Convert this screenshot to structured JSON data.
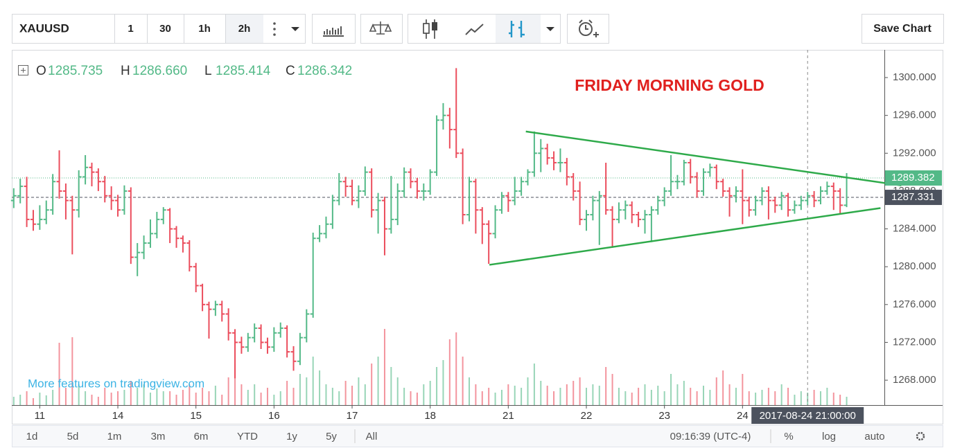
{
  "toolbar": {
    "symbol": "XAUUSD",
    "intervals": [
      "1",
      "30",
      "1h",
      "2h"
    ],
    "save": "Save Chart"
  },
  "bottom_bar": {
    "ranges": [
      "1d",
      "5d",
      "1m",
      "3m",
      "6m",
      "YTD",
      "1y",
      "5y",
      "All"
    ],
    "time": "09:16:39 (UTC-4)",
    "options": [
      "%",
      "log",
      "auto"
    ]
  },
  "chart_data": {
    "type": "ohlc",
    "title": "FRIDAY MORNING GOLD",
    "watermark": "More features on tradingview.com",
    "up_color": "#53b987",
    "down_color": "#eb4d5c",
    "readout": {
      "names": [
        "O",
        "H",
        "L",
        "C"
      ],
      "values": [
        1285.735,
        1286.66,
        1285.414,
        1286.342
      ],
      "value_labels": [
        "1285.735",
        "1286.660",
        "1285.414",
        "1286.342"
      ]
    },
    "xlim": [
      -0.3,
      133.8
    ],
    "xticks": [
      {
        "value": 4,
        "label": "11"
      },
      {
        "value": 16,
        "label": "14"
      },
      {
        "value": 28,
        "label": "15"
      },
      {
        "value": 40,
        "label": "16"
      },
      {
        "value": 52,
        "label": "17"
      },
      {
        "value": 64,
        "label": "18"
      },
      {
        "value": 76,
        "label": "21"
      },
      {
        "value": 88,
        "label": "22"
      },
      {
        "value": 100,
        "label": "23"
      },
      {
        "value": 112,
        "label": "24"
      }
    ],
    "ylim": [
      1265.37,
      1302.93
    ],
    "yticks": [
      {
        "value": 1268,
        "label": "1268.000"
      },
      {
        "value": 1272,
        "label": "1272.000"
      },
      {
        "value": 1276,
        "label": "1276.000"
      },
      {
        "value": 1280,
        "label": "1280.000"
      },
      {
        "value": 1284,
        "label": "1284.000"
      },
      {
        "value": 1288,
        "label": "1288.000"
      },
      {
        "value": 1292,
        "label": "1292.000"
      },
      {
        "value": 1296,
        "label": "1296.000"
      },
      {
        "value": 1300,
        "label": "1300.000"
      }
    ],
    "grid": false,
    "open": [
      1287.0,
      1287.5,
      1288.5,
      1285.0,
      1284.5,
      1285.0,
      1286.0,
      1289.0,
      1288.0,
      1287.0,
      1286.0,
      1289.5,
      1290.5,
      1290.0,
      1289.0,
      1287.5,
      1287.0,
      1286.0,
      1288.0,
      1281.0,
      1281.5,
      1282.5,
      1283.5,
      1285.0,
      1286.0,
      1284.0,
      1283.0,
      1282.5,
      1280.0,
      1278.0,
      1276.0,
      1275.5,
      1276.0,
      1275.0,
      1273.0,
      1272.0,
      1271.5,
      1272.5,
      1273.5,
      1272.0,
      1271.5,
      1273.0,
      1273.5,
      1271.0,
      1270.0,
      1272.5,
      1275.0,
      1283.0,
      1283.5,
      1284.5,
      1287.0,
      1289.0,
      1288.5,
      1287.0,
      1288.0,
      1290.0,
      1286.0,
      1287.0,
      1284.0,
      1285.0,
      1288.0,
      1290.0,
      1289.0,
      1288.0,
      1288.0,
      1290.0,
      1295.5,
      1296.0,
      1294.5,
      1292.0,
      1285.5,
      1289.0,
      1286.0,
      1284.5,
      1283.5,
      1286.0,
      1287.5,
      1287.0,
      1288.0,
      1289.0,
      1290.0,
      1292.0,
      1292.5,
      1291.5,
      1291.0,
      1291.0,
      1289.5,
      1288.0,
      1285.0,
      1285.5,
      1287.0,
      1287.5,
      1286.0,
      1285.0,
      1286.0,
      1286.5,
      1285.5,
      1285.0,
      1285.5,
      1286.0,
      1287.0,
      1288.0,
      1289.0,
      1289.0,
      1291.0,
      1289.5,
      1288.0,
      1290.0,
      1290.5,
      1289.0,
      1288.0,
      1287.5,
      1288.0,
      1287.0,
      1286.0,
      1287.0,
      1288.0,
      1287.0,
      1286.5,
      1287.5,
      1286.0,
      1286.5,
      1287.0,
      1287.5,
      1287.0,
      1288.0,
      1288.5,
      1288.0,
      1286.5
    ],
    "high": [
      1288.3,
      1289.3,
      1289.5,
      1286.0,
      1286.5,
      1287.0,
      1289.8,
      1292.3,
      1288.8,
      1287.5,
      1290.2,
      1291.8,
      1291.0,
      1290.4,
      1289.6,
      1288.5,
      1287.6,
      1288.6,
      1288.4,
      1282.5,
      1283.3,
      1285.0,
      1285.8,
      1286.3,
      1286.2,
      1284.3,
      1283.3,
      1282.8,
      1280.4,
      1278.2,
      1276.3,
      1276.4,
      1276.4,
      1275.6,
      1273.4,
      1272.6,
      1273.0,
      1274.0,
      1273.9,
      1272.5,
      1273.6,
      1274.1,
      1273.8,
      1271.6,
      1273.0,
      1275.5,
      1283.6,
      1284.4,
      1285.3,
      1287.6,
      1289.9,
      1289.5,
      1289.2,
      1288.6,
      1290.6,
      1290.4,
      1287.8,
      1287.4,
      1289.6,
      1288.8,
      1290.5,
      1290.4,
      1289.4,
      1288.8,
      1290.3,
      1296.0,
      1297.3,
      1296.8,
      1301.0,
      1292.5,
      1289.5,
      1289.3,
      1286.3,
      1284.9,
      1286.5,
      1287.9,
      1287.9,
      1289.5,
      1289.5,
      1290.3,
      1294.3,
      1293.5,
      1293.0,
      1292.2,
      1292.5,
      1291.5,
      1289.9,
      1289.0,
      1286.0,
      1287.5,
      1288.0,
      1291.0,
      1286.4,
      1286.8,
      1287.0,
      1286.9,
      1285.8,
      1286.0,
      1286.4,
      1287.5,
      1288.4,
      1291.8,
      1289.7,
      1291.3,
      1291.4,
      1290.0,
      1290.4,
      1290.9,
      1290.8,
      1289.3,
      1288.4,
      1288.5,
      1290.3,
      1287.4,
      1287.5,
      1288.4,
      1288.5,
      1287.4,
      1287.9,
      1287.8,
      1287.0,
      1287.5,
      1287.9,
      1288.0,
      1288.5,
      1289.0,
      1288.9,
      1288.3,
      1289.9
    ],
    "low": [
      1286.2,
      1286.7,
      1284.2,
      1283.8,
      1283.9,
      1284.5,
      1285.5,
      1287.2,
      1285.0,
      1281.3,
      1285.2,
      1288.7,
      1288.5,
      1288.0,
      1286.8,
      1286.0,
      1285.3,
      1285.5,
      1280.3,
      1279.0,
      1280.8,
      1282.0,
      1283.0,
      1284.5,
      1282.5,
      1282.0,
      1281.5,
      1279.5,
      1277.3,
      1275.3,
      1272.4,
      1274.8,
      1274.2,
      1272.2,
      1268.2,
      1270.8,
      1271.0,
      1272.0,
      1271.3,
      1270.8,
      1271.0,
      1272.5,
      1270.4,
      1269.0,
      1269.6,
      1272.0,
      1274.6,
      1282.6,
      1283.0,
      1284.0,
      1286.5,
      1287.4,
      1286.5,
      1286.2,
      1287.5,
      1285.2,
      1283.5,
      1281.2,
      1283.5,
      1284.4,
      1287.3,
      1288.3,
      1287.2,
      1287.0,
      1287.6,
      1289.6,
      1294.5,
      1292.5,
      1291.5,
      1284.5,
      1284.8,
      1283.5,
      1282.4,
      1280.3,
      1283.0,
      1285.6,
      1285.8,
      1286.5,
      1287.5,
      1288.6,
      1289.5,
      1290.0,
      1290.8,
      1290.2,
      1290.0,
      1288.6,
      1287.0,
      1284.4,
      1283.8,
      1284.9,
      1282.3,
      1285.5,
      1282.0,
      1284.6,
      1285.0,
      1284.6,
      1284.2,
      1283.5,
      1282.6,
      1285.5,
      1286.4,
      1287.5,
      1288.2,
      1288.6,
      1288.8,
      1287.3,
      1287.5,
      1289.5,
      1288.2,
      1287.4,
      1285.3,
      1286.8,
      1284.5,
      1285.3,
      1285.4,
      1286.5,
      1285.0,
      1285.7,
      1286.0,
      1285.3,
      1285.6,
      1286.0,
      1286.5,
      1286.3,
      1286.6,
      1287.6,
      1286.0,
      1285.6,
      1286.3
    ],
    "close": [
      1287.5,
      1288.5,
      1285.0,
      1284.5,
      1285.0,
      1286.0,
      1289.0,
      1288.0,
      1287.0,
      1286.0,
      1289.5,
      1290.5,
      1290.0,
      1289.0,
      1287.5,
      1287.0,
      1286.0,
      1288.0,
      1281.0,
      1281.5,
      1282.5,
      1283.5,
      1285.0,
      1286.0,
      1284.0,
      1283.0,
      1282.5,
      1280.0,
      1278.0,
      1276.0,
      1275.5,
      1276.0,
      1275.0,
      1273.0,
      1272.0,
      1271.5,
      1272.5,
      1273.5,
      1272.0,
      1271.5,
      1273.0,
      1273.5,
      1271.0,
      1270.0,
      1272.5,
      1275.0,
      1283.0,
      1283.5,
      1284.5,
      1287.0,
      1289.0,
      1288.5,
      1287.0,
      1288.0,
      1290.0,
      1286.0,
      1287.0,
      1284.0,
      1285.0,
      1288.0,
      1290.0,
      1289.0,
      1288.0,
      1288.0,
      1290.0,
      1295.5,
      1296.0,
      1294.5,
      1292.0,
      1285.5,
      1289.0,
      1286.0,
      1284.5,
      1283.5,
      1286.0,
      1287.5,
      1287.0,
      1288.0,
      1289.0,
      1290.0,
      1292.0,
      1292.5,
      1291.5,
      1291.0,
      1291.0,
      1289.5,
      1288.0,
      1285.0,
      1285.5,
      1287.0,
      1287.5,
      1286.0,
      1285.0,
      1286.0,
      1286.5,
      1285.5,
      1285.0,
      1285.5,
      1286.0,
      1287.0,
      1288.0,
      1289.0,
      1289.0,
      1291.0,
      1289.5,
      1288.0,
      1290.0,
      1290.5,
      1289.0,
      1288.0,
      1287.5,
      1288.0,
      1287.0,
      1286.0,
      1287.0,
      1288.0,
      1287.0,
      1286.5,
      1287.5,
      1286.0,
      1286.5,
      1287.0,
      1287.5,
      1287.0,
      1288.0,
      1288.5,
      1288.0,
      1286.5,
      1289.4
    ],
    "volume": [
      12,
      15,
      20,
      10,
      18,
      14,
      22,
      90,
      25,
      98,
      30,
      20,
      15,
      12,
      25,
      18,
      20,
      22,
      35,
      25,
      30,
      18,
      24,
      20,
      20,
      15,
      22,
      30,
      18,
      25,
      20,
      28,
      15,
      40,
      60,
      30,
      22,
      30,
      18,
      25,
      15,
      20,
      35,
      25,
      45,
      40,
      70,
      50,
      30,
      25,
      20,
      35,
      28,
      40,
      30,
      60,
      70,
      110,
      55,
      40,
      25,
      20,
      18,
      30,
      35,
      55,
      65,
      95,
      105,
      70,
      40,
      30,
      20,
      25,
      18,
      22,
      30,
      28,
      25,
      40,
      60,
      35,
      28,
      20,
      25,
      30,
      35,
      40,
      25,
      30,
      28,
      55,
      45,
      25,
      20,
      18,
      25,
      30,
      22,
      28,
      20,
      45,
      30,
      35,
      25,
      20,
      28,
      22,
      40,
      50,
      30,
      25,
      45,
      20,
      18,
      22,
      25,
      20,
      30,
      25,
      15,
      20,
      18,
      22,
      20,
      25,
      18,
      15,
      12
    ],
    "trendlines": [
      {
        "color": "#2eaa4a",
        "x": [
          78.7,
          136.4
        ],
        "y": [
          1294.3,
          1288.6
        ]
      },
      {
        "color": "#2eaa4a",
        "x": [
          73.1,
          133.2
        ],
        "y": [
          1280.2,
          1286.2
        ]
      }
    ],
    "price_lines": [
      {
        "value": 1289.382,
        "label": "1289.382",
        "color": "#53b987"
      },
      {
        "value": 1287.331,
        "label": "1287.331",
        "color": "#4c525e"
      }
    ],
    "crosshair": {
      "x": 122,
      "label": "2017-08-24 21:00:00"
    }
  }
}
